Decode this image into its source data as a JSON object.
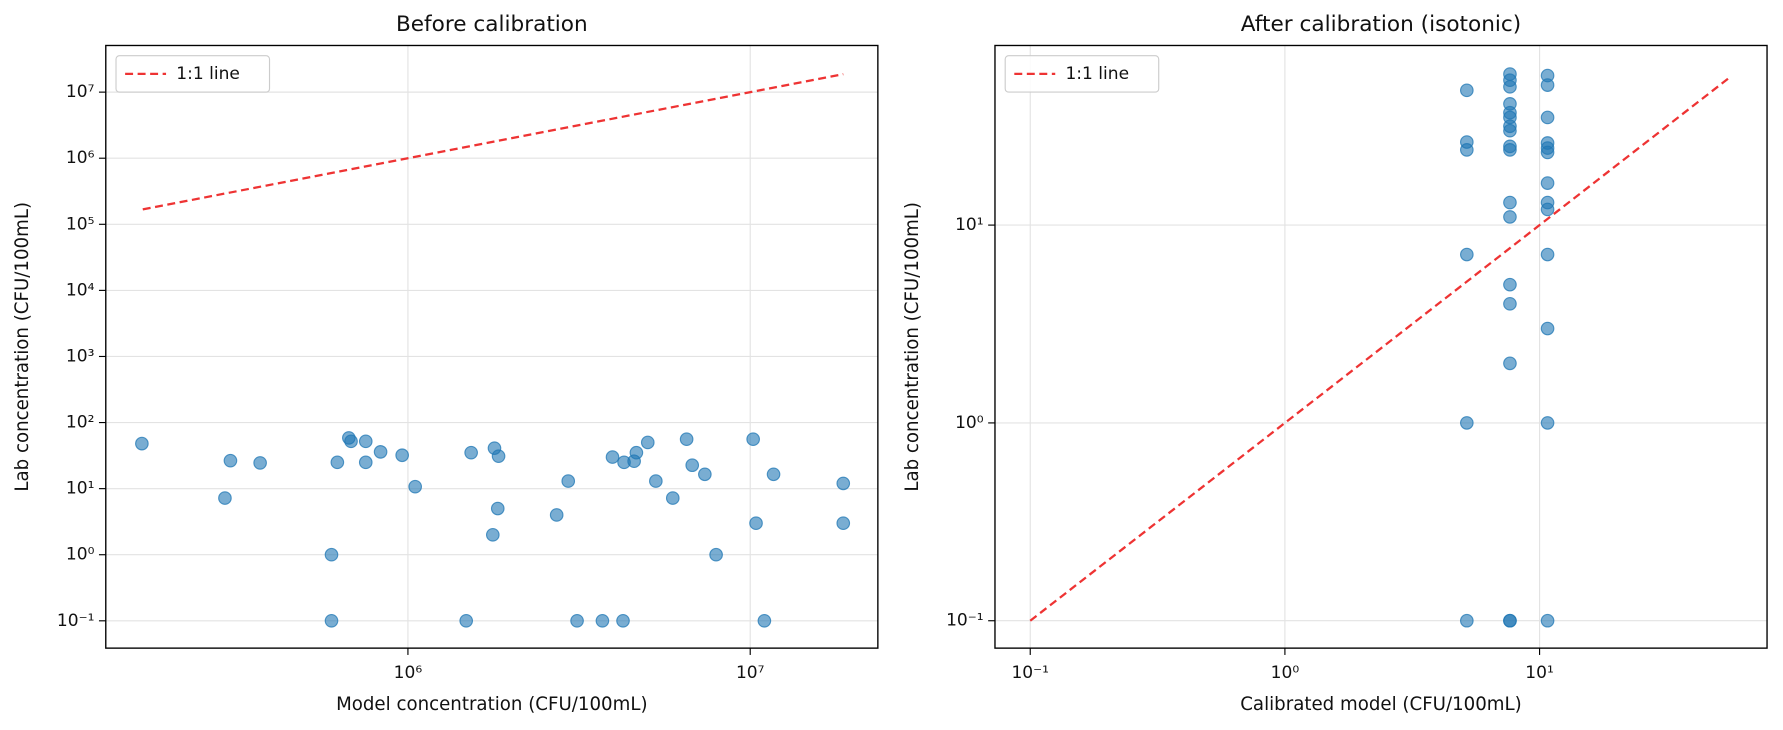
{
  "chart_data": [
    {
      "type": "scatter",
      "title": "Before calibration",
      "x_label": "Model concentration (CFU/100mL)",
      "y_label": "Lab concentration (CFU/100mL)",
      "xscale": "log",
      "yscale": "log",
      "grid": true,
      "legend": "upper left",
      "xlim": [
        131000,
        23600000
      ],
      "ylim": [
        0.0386,
        50800000
      ],
      "xticks": [
        {
          "value": 1000000,
          "label": "10⁶"
        },
        {
          "value": 10000000,
          "label": "10⁷"
        }
      ],
      "yticks": [
        {
          "value": 0.1,
          "label": "10⁻¹"
        },
        {
          "value": 1,
          "label": "10⁰"
        },
        {
          "value": 10,
          "label": "10¹"
        },
        {
          "value": 100,
          "label": "10²"
        },
        {
          "value": 1000,
          "label": "10³"
        },
        {
          "value": 10000,
          "label": "10⁴"
        },
        {
          "value": 100000,
          "label": "10⁵"
        },
        {
          "value": 1000000,
          "label": "10⁶"
        },
        {
          "value": 10000000,
          "label": "10⁷"
        }
      ],
      "series": [
        {
          "name": "1:1 line",
          "type": "line",
          "style": "dashed",
          "color": "#ee3333",
          "x": [
            168000,
            18700000
          ],
          "values": [
            168000,
            18700000
          ]
        },
        {
          "type": "scatter",
          "color": "#1f77b4",
          "x": [
            167000,
            292000,
            303000,
            370000,
            598000,
            598000,
            622000,
            672000,
            682000,
            753000,
            753000,
            832000,
            962000,
            1050000,
            1480000,
            1530000,
            1770000,
            1790000,
            1830000,
            1840000,
            2720000,
            2940000,
            3120000,
            3700000,
            3960000,
            4250000,
            4280000,
            4580000,
            4650000,
            5020000,
            5300000,
            5940000,
            6520000,
            6770000,
            7370000,
            7950000,
            10200000,
            10400000,
            11000000,
            11700000,
            18700000,
            18700000
          ],
          "values": [
            48,
            7.2,
            26.5,
            24.5,
            1,
            0.1,
            25,
            58.6,
            52,
            52,
            25,
            36,
            32,
            10.7,
            0.1,
            35,
            2,
            41,
            5,
            31,
            4,
            13,
            0.1,
            0.1,
            30,
            0.1,
            25,
            26,
            35,
            50,
            13,
            7.2,
            56,
            22.6,
            16.5,
            1,
            56,
            3,
            0.1,
            16.5,
            12,
            3
          ]
        }
      ]
    },
    {
      "type": "scatter",
      "title": "After calibration (isotonic)",
      "x_label": "Calibrated model (CFU/100mL)",
      "y_label": "Lab concentration (CFU/100mL)",
      "xscale": "log",
      "yscale": "log",
      "grid": true,
      "legend": "upper left",
      "xlim": [
        0.0727,
        78.2
      ],
      "ylim": [
        0.0727,
        80.9
      ],
      "xticks": [
        {
          "value": 0.1,
          "label": "10⁻¹"
        },
        {
          "value": 1,
          "label": "10⁰"
        },
        {
          "value": 10,
          "label": "10¹"
        }
      ],
      "yticks": [
        {
          "value": 0.1,
          "label": "10⁻¹"
        },
        {
          "value": 1,
          "label": "10⁰"
        },
        {
          "value": 10,
          "label": "10¹"
        }
      ],
      "series": [
        {
          "name": "1:1 line",
          "type": "line",
          "style": "dashed",
          "color": "#ee3333",
          "x": [
            0.1,
            56
          ],
          "values": [
            0.1,
            56
          ]
        },
        {
          "type": "scatter",
          "color": "#1f77b4",
          "x": [
            5.18,
            5.18,
            5.18,
            5.18,
            5.18,
            5.18,
            7.65,
            7.65,
            7.65,
            7.65,
            7.65,
            7.65,
            7.65,
            7.65,
            7.65,
            7.65,
            7.65,
            7.65,
            7.65,
            7.65,
            7.65,
            7.65,
            7.65,
            10.75,
            10.75,
            10.75,
            10.75,
            10.75,
            10.75,
            10.75,
            10.75,
            10.75,
            10.75,
            10.75,
            10.75,
            10.75
          ],
          "values": [
            48,
            26.3,
            24,
            7.1,
            1,
            0.1,
            58,
            54,
            50,
            41,
            37,
            35,
            31.6,
            30,
            25,
            24,
            13,
            11,
            5,
            4,
            2,
            0.1,
            0.1,
            57,
            51,
            35,
            26,
            24.5,
            23.3,
            16.3,
            13,
            12,
            7.1,
            3,
            1,
            0.1
          ]
        }
      ]
    }
  ]
}
